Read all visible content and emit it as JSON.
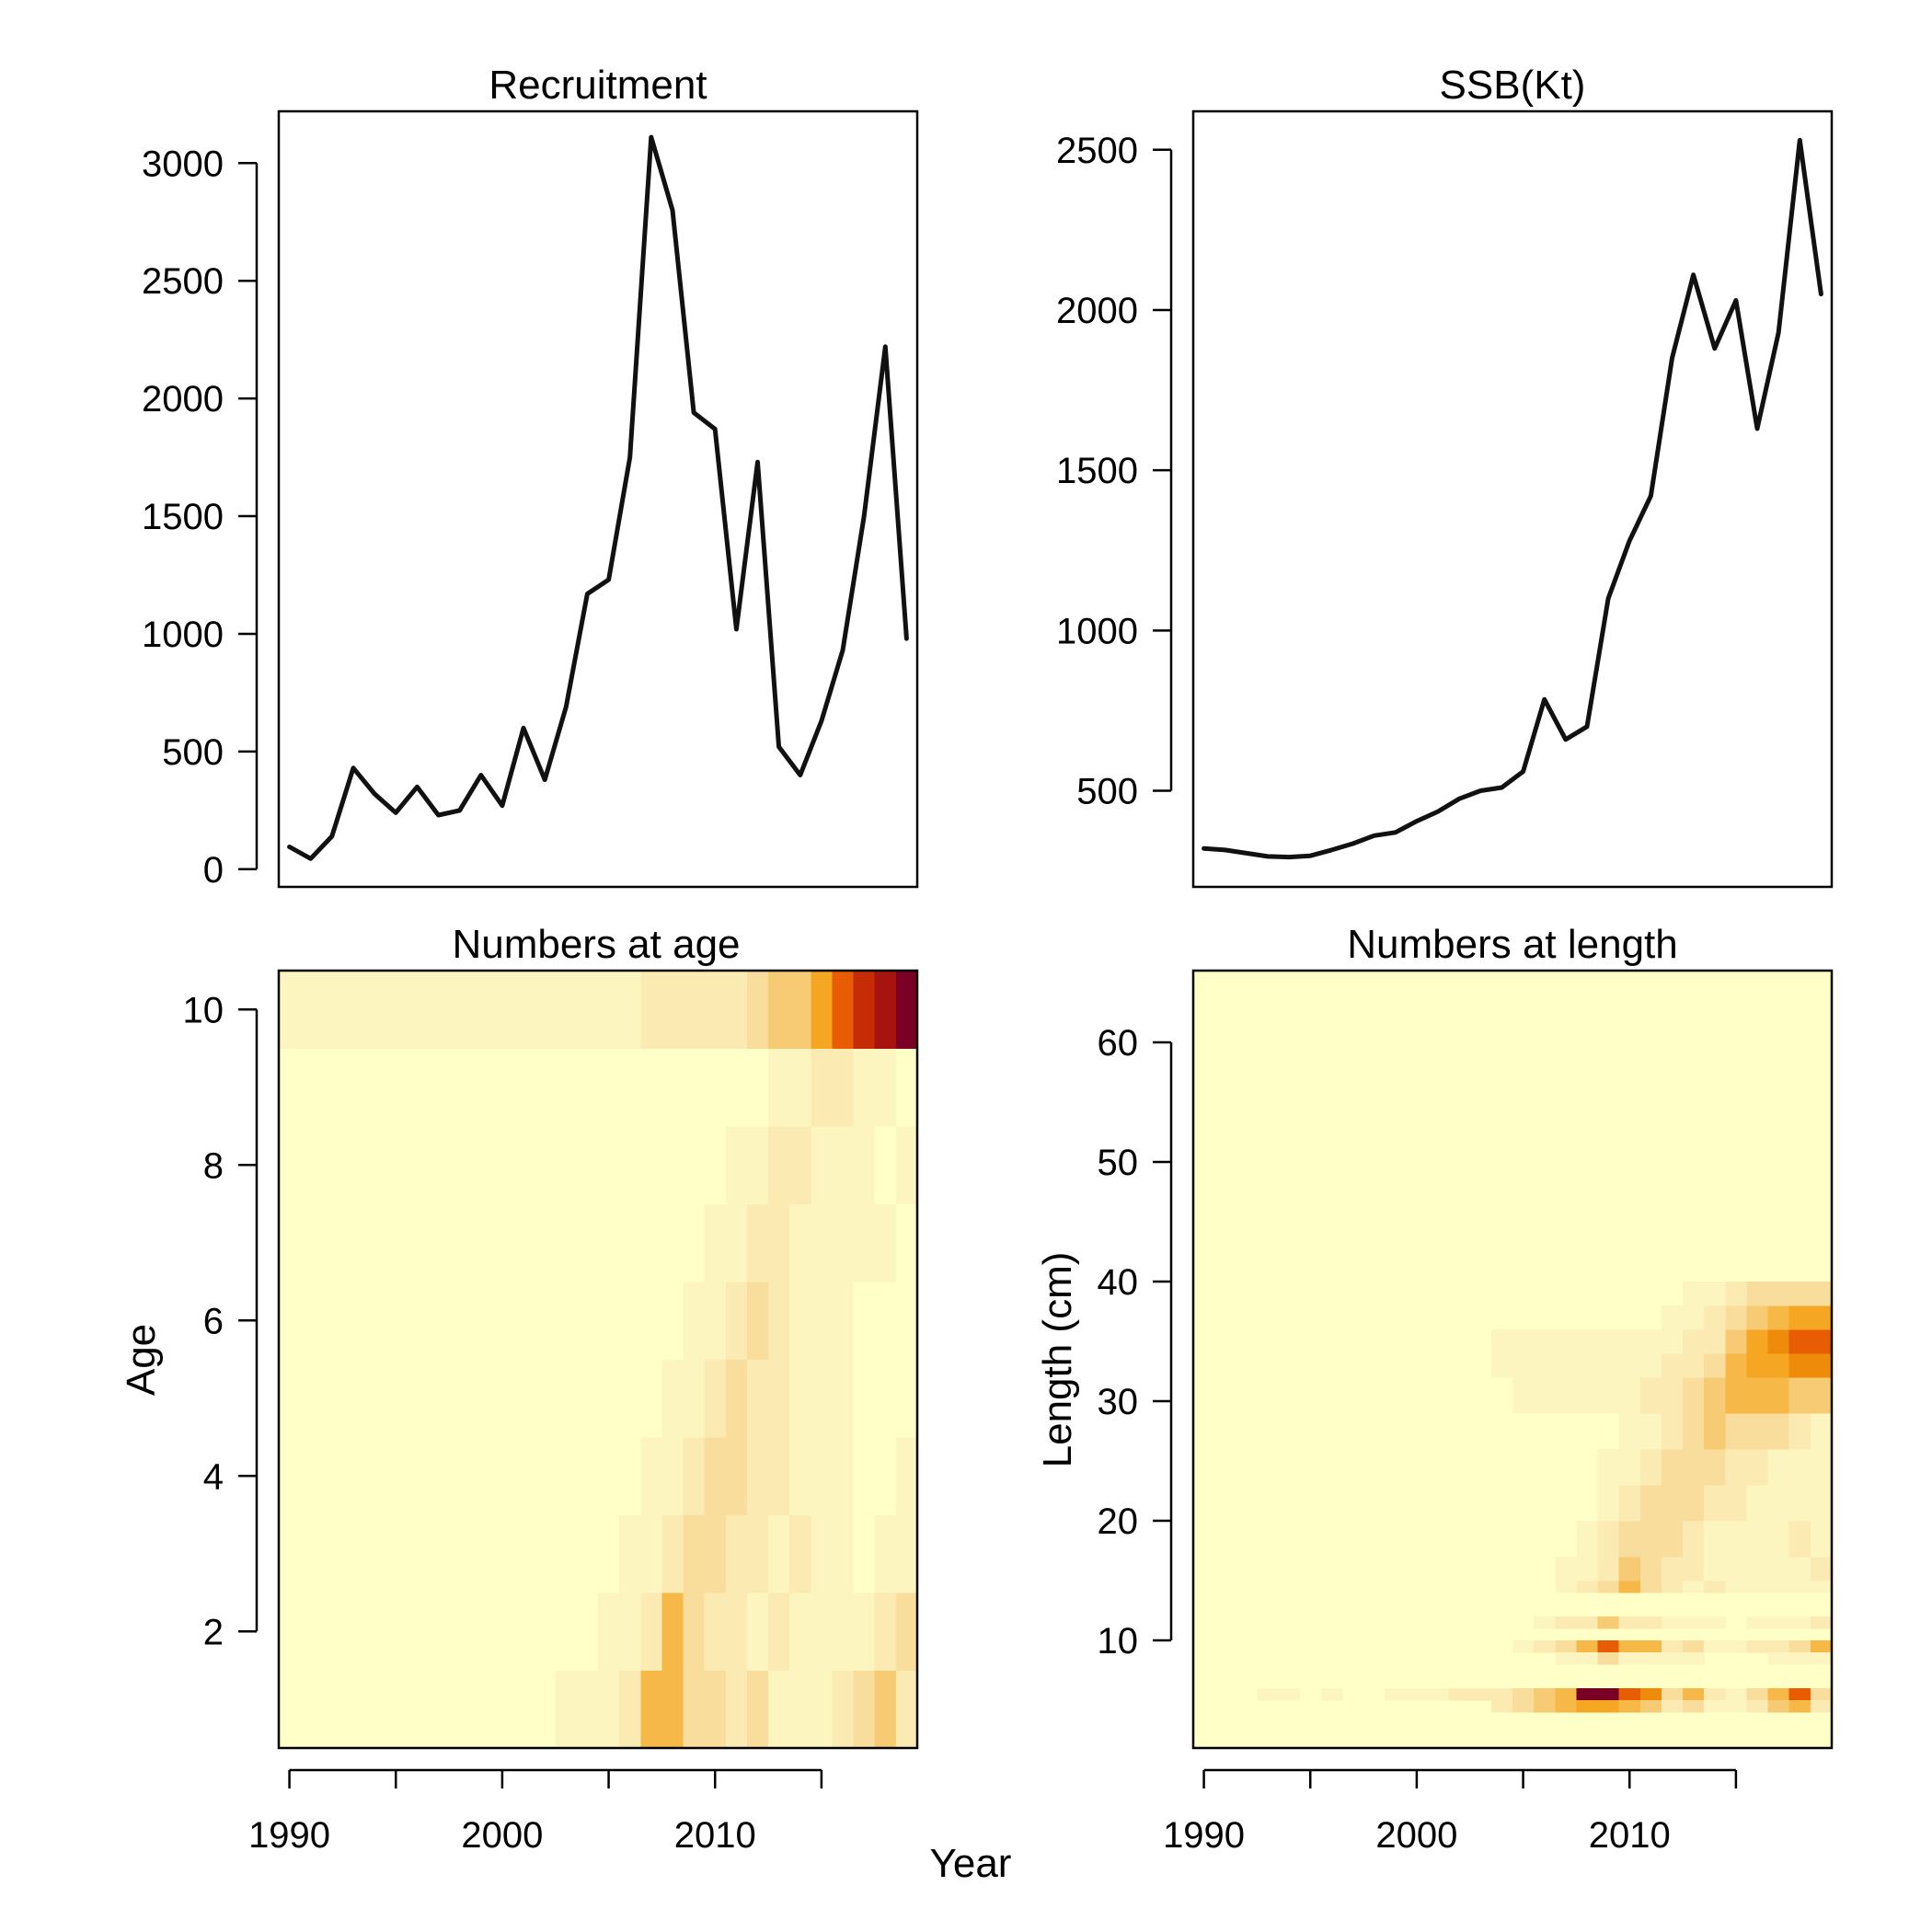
{
  "chart_data": [
    {
      "id": "recruitment",
      "type": "line",
      "title": "Recruitment",
      "xlabel": "",
      "ylabel": "",
      "x": [
        1990,
        1991,
        1992,
        1993,
        1994,
        1995,
        1996,
        1997,
        1998,
        1999,
        2000,
        2001,
        2002,
        2003,
        2004,
        2005,
        2006,
        2007,
        2008,
        2009,
        2010,
        2011,
        2012,
        2013,
        2014,
        2015,
        2016,
        2017,
        2018,
        2019
      ],
      "values": [
        95,
        45,
        140,
        430,
        320,
        240,
        350,
        230,
        250,
        400,
        270,
        600,
        380,
        690,
        1170,
        1230,
        1750,
        3110,
        2800,
        1940,
        1870,
        1020,
        1730,
        520,
        400,
        630,
        930,
        1500,
        2220,
        980
      ],
      "xlim": [
        1989.5,
        2019.5
      ],
      "ylim": [
        -75,
        3220
      ],
      "xticks": [
        1990,
        1995,
        2000,
        2005,
        2010,
        2015
      ],
      "xtick_labels": [
        "1990",
        "",
        "2000",
        "",
        "2010",
        ""
      ],
      "yticks": [
        0,
        500,
        1000,
        1500,
        2000,
        2500,
        3000
      ],
      "ytick_labels": [
        "0",
        "500",
        "1000",
        "1500",
        "2000",
        "2500",
        "3000"
      ],
      "show_x_ticks": false,
      "grid": false
    },
    {
      "id": "ssb",
      "type": "line",
      "title": "SSB(Kt)",
      "xlabel": "",
      "ylabel": "",
      "x": [
        1990,
        1991,
        1992,
        1993,
        1994,
        1995,
        1996,
        1997,
        1998,
        1999,
        2000,
        2001,
        2002,
        2003,
        2004,
        2005,
        2006,
        2007,
        2008,
        2009,
        2010,
        2011,
        2012,
        2013,
        2014,
        2015,
        2016,
        2017,
        2018,
        2019
      ],
      "values": [
        320,
        315,
        305,
        295,
        293,
        297,
        315,
        335,
        360,
        370,
        405,
        435,
        475,
        500,
        510,
        560,
        785,
        660,
        700,
        1100,
        1280,
        1420,
        1850,
        2110,
        1880,
        2030,
        1630,
        1930,
        2530,
        2050
      ],
      "xlim": [
        1989.5,
        2019.5
      ],
      "ylim": [
        200,
        2620
      ],
      "xticks": [
        1990,
        1995,
        2000,
        2005,
        2010,
        2015
      ],
      "xtick_labels": [
        "1990",
        "",
        "2000",
        "",
        "2010",
        ""
      ],
      "yticks": [
        500,
        1000,
        1500,
        2000,
        2500
      ],
      "ytick_labels": [
        "500",
        "1000",
        "1500",
        "2000",
        "2500"
      ],
      "show_x_ticks": false,
      "grid": false
    },
    {
      "id": "numbers-at-age",
      "type": "heatmap",
      "title": "Numbers at age",
      "xlabel": "",
      "ylabel": "Age",
      "x": [
        1990,
        1991,
        1992,
        1993,
        1994,
        1995,
        1996,
        1997,
        1998,
        1999,
        2000,
        2001,
        2002,
        2003,
        2004,
        2005,
        2006,
        2007,
        2008,
        2009,
        2010,
        2011,
        2012,
        2013,
        2014,
        2015,
        2016,
        2017,
        2018,
        2019
      ],
      "y": [
        1,
        2,
        3,
        4,
        5,
        6,
        7,
        8,
        9,
        10
      ],
      "xlim": [
        1989.5,
        2019.5
      ],
      "ylim": [
        0.5,
        10.5
      ],
      "xticks": [
        1990,
        1995,
        2000,
        2005,
        2010,
        2015
      ],
      "xtick_labels": [
        "1990",
        "",
        "2000",
        "",
        "2010",
        ""
      ],
      "yticks": [
        2,
        4,
        6,
        8,
        10
      ],
      "ytick_labels": [
        "2",
        "4",
        "6",
        "8",
        "10"
      ],
      "color_scale": [
        "#FFFFC8",
        "#FDF5BF",
        "#FBEAB2",
        "#F9DD9C",
        "#F7CA74",
        "#F6B847",
        "#F5A623",
        "#EE8B0B",
        "#E85D04",
        "#C62D06",
        "#A71410",
        "#7A0026"
      ],
      "z": [
        [
          0,
          0,
          0,
          0,
          0,
          0,
          0,
          0,
          0,
          0,
          0,
          0,
          0,
          1,
          1,
          1,
          2,
          5,
          5,
          3,
          3,
          2,
          3,
          1,
          1,
          1,
          2,
          3,
          4,
          2
        ],
        [
          0,
          0,
          0,
          0,
          0,
          0,
          0,
          0,
          0,
          0,
          0,
          0,
          0,
          0,
          0,
          1,
          1,
          2,
          5,
          3,
          2,
          2,
          1,
          2,
          1,
          1,
          1,
          1,
          2,
          3
        ],
        [
          0,
          0,
          0,
          0,
          0,
          0,
          0,
          0,
          0,
          0,
          0,
          0,
          0,
          0,
          0,
          0,
          1,
          1,
          2,
          3,
          3,
          2,
          2,
          1,
          2,
          1,
          1,
          0,
          1,
          1
        ],
        [
          0,
          0,
          0,
          0,
          0,
          0,
          0,
          0,
          0,
          0,
          0,
          0,
          0,
          0,
          0,
          0,
          0,
          1,
          1,
          2,
          3,
          3,
          2,
          2,
          1,
          1,
          1,
          0,
          0,
          1
        ],
        [
          0,
          0,
          0,
          0,
          0,
          0,
          0,
          0,
          0,
          0,
          0,
          0,
          0,
          0,
          0,
          0,
          0,
          0,
          1,
          1,
          2,
          3,
          2,
          2,
          1,
          1,
          1,
          0,
          0,
          0
        ],
        [
          0,
          0,
          0,
          0,
          0,
          0,
          0,
          0,
          0,
          0,
          0,
          0,
          0,
          0,
          0,
          0,
          0,
          0,
          0,
          1,
          1,
          2,
          3,
          2,
          1,
          1,
          1,
          0,
          0,
          0
        ],
        [
          0,
          0,
          0,
          0,
          0,
          0,
          0,
          0,
          0,
          0,
          0,
          0,
          0,
          0,
          0,
          0,
          0,
          0,
          0,
          0,
          1,
          1,
          2,
          2,
          1,
          1,
          1,
          1,
          1,
          0
        ],
        [
          0,
          0,
          0,
          0,
          0,
          0,
          0,
          0,
          0,
          0,
          0,
          0,
          0,
          0,
          0,
          0,
          0,
          0,
          0,
          0,
          0,
          1,
          1,
          2,
          2,
          1,
          1,
          1,
          0,
          1
        ],
        [
          0,
          0,
          0,
          0,
          0,
          0,
          0,
          0,
          0,
          0,
          0,
          0,
          0,
          0,
          0,
          0,
          0,
          0,
          0,
          0,
          0,
          0,
          0,
          1,
          1,
          2,
          2,
          1,
          1,
          0
        ],
        [
          1,
          1,
          1,
          1,
          1,
          1,
          1,
          1,
          1,
          1,
          1,
          1,
          1,
          1,
          1,
          1,
          1,
          2,
          2,
          2,
          2,
          2,
          3,
          4,
          4,
          6,
          8,
          9,
          10,
          11
        ]
      ],
      "grid": false
    },
    {
      "id": "numbers-at-length",
      "type": "heatmap",
      "title": "Numbers at length",
      "xlabel": "",
      "ylabel": "Length (cm)",
      "x": [
        1990,
        1991,
        1992,
        1993,
        1994,
        1995,
        1996,
        1997,
        1998,
        1999,
        2000,
        2001,
        2002,
        2003,
        2004,
        2005,
        2006,
        2007,
        2008,
        2009,
        2010,
        2011,
        2012,
        2013,
        2014,
        2015,
        2016,
        2017,
        2018,
        2019
      ],
      "y_start": 0.5,
      "y_step": 1.0,
      "xlim": [
        1989.5,
        2019.5
      ],
      "ylim": [
        1,
        66
      ],
      "xticks": [
        1990,
        1995,
        2000,
        2005,
        2010,
        2015
      ],
      "xtick_labels": [
        "1990",
        "",
        "2000",
        "",
        "2010",
        ""
      ],
      "yticks": [
        10,
        20,
        30,
        40,
        50,
        60
      ],
      "ytick_labels": [
        "10",
        "20",
        "30",
        "40",
        "50",
        "60"
      ],
      "color_scale": [
        "#FFFFC8",
        "#FDF5BF",
        "#FBEAB2",
        "#F9DD9C",
        "#F7CA74",
        "#F6B847",
        "#F5A623",
        "#EE8B0B",
        "#E85D04",
        "#C62D06",
        "#A71410",
        "#7A0026"
      ],
      "cells": [
        {
          "r": [
            5,
            6
          ],
          "v": [
            0,
            0,
            0,
            1,
            1,
            0,
            1,
            0,
            0,
            1,
            1,
            1,
            2,
            2,
            2,
            3,
            4,
            5,
            11,
            11,
            8,
            7,
            3,
            5,
            2,
            1,
            3,
            5,
            8,
            3
          ]
        },
        {
          "r": [
            4,
            5
          ],
          "v": [
            0,
            0,
            0,
            0,
            0,
            0,
            0,
            0,
            0,
            0,
            0,
            0,
            0,
            0,
            2,
            3,
            4,
            5,
            6,
            6,
            5,
            4,
            2,
            3,
            1,
            1,
            2,
            4,
            5,
            2
          ]
        },
        {
          "r": [
            9,
            10
          ],
          "v": [
            0,
            0,
            0,
            0,
            0,
            0,
            0,
            0,
            0,
            0,
            0,
            0,
            0,
            0,
            0,
            1,
            2,
            3,
            5,
            8,
            5,
            5,
            2,
            3,
            1,
            1,
            2,
            2,
            3,
            5
          ]
        },
        {
          "r": [
            11,
            12
          ],
          "v": [
            0,
            0,
            0,
            0,
            0,
            0,
            0,
            0,
            0,
            0,
            0,
            0,
            0,
            0,
            0,
            0,
            1,
            2,
            2,
            4,
            2,
            2,
            1,
            1,
            1,
            0,
            1,
            1,
            1,
            2
          ]
        },
        {
          "r": [
            8,
            9
          ],
          "v": [
            0,
            0,
            0,
            0,
            0,
            0,
            0,
            0,
            0,
            0,
            0,
            0,
            0,
            0,
            0,
            0,
            0,
            1,
            1,
            3,
            1,
            1,
            1,
            1,
            0,
            0,
            0,
            1,
            1,
            1
          ]
        },
        {
          "r": [
            14,
            15
          ],
          "v": [
            0,
            0,
            0,
            0,
            0,
            0,
            0,
            0,
            0,
            0,
            0,
            0,
            0,
            0,
            0,
            0,
            0,
            1,
            2,
            3,
            5,
            3,
            2,
            1,
            2,
            1,
            1,
            1,
            1,
            1
          ]
        },
        {
          "r": [
            15,
            17
          ],
          "v": [
            0,
            0,
            0,
            0,
            0,
            0,
            0,
            0,
            0,
            0,
            0,
            0,
            0,
            0,
            0,
            0,
            0,
            1,
            1,
            2,
            4,
            3,
            2,
            2,
            1,
            1,
            1,
            1,
            1,
            2
          ]
        },
        {
          "r": [
            17,
            20
          ],
          "v": [
            0,
            0,
            0,
            0,
            0,
            0,
            0,
            0,
            0,
            0,
            0,
            0,
            0,
            0,
            0,
            0,
            0,
            0,
            1,
            2,
            3,
            3,
            3,
            2,
            1,
            1,
            1,
            1,
            2,
            1
          ]
        },
        {
          "r": [
            20,
            23
          ],
          "v": [
            0,
            0,
            0,
            0,
            0,
            0,
            0,
            0,
            0,
            0,
            0,
            0,
            0,
            0,
            0,
            0,
            0,
            0,
            0,
            1,
            2,
            3,
            3,
            3,
            2,
            2,
            1,
            1,
            1,
            1
          ]
        },
        {
          "r": [
            23,
            26
          ],
          "v": [
            0,
            0,
            0,
            0,
            0,
            0,
            0,
            0,
            0,
            0,
            0,
            0,
            0,
            0,
            0,
            0,
            0,
            0,
            0,
            1,
            1,
            2,
            3,
            3,
            3,
            2,
            2,
            1,
            1,
            1
          ]
        },
        {
          "r": [
            26,
            29
          ],
          "v": [
            0,
            0,
            0,
            0,
            0,
            0,
            0,
            0,
            0,
            0,
            0,
            0,
            0,
            0,
            0,
            0,
            0,
            0,
            0,
            0,
            1,
            1,
            2,
            3,
            4,
            3,
            3,
            3,
            2,
            1
          ]
        },
        {
          "r": [
            29,
            32
          ],
          "v": [
            0,
            0,
            0,
            0,
            0,
            0,
            0,
            0,
            0,
            0,
            0,
            0,
            0,
            0,
            0,
            1,
            1,
            1,
            1,
            1,
            1,
            2,
            2,
            3,
            4,
            5,
            5,
            5,
            4,
            4
          ]
        },
        {
          "r": [
            32,
            34
          ],
          "v": [
            0,
            0,
            0,
            0,
            0,
            0,
            0,
            0,
            0,
            0,
            0,
            0,
            0,
            0,
            1,
            1,
            1,
            1,
            1,
            1,
            1,
            1,
            2,
            2,
            3,
            5,
            6,
            6,
            7,
            7
          ]
        },
        {
          "r": [
            34,
            36
          ],
          "v": [
            0,
            0,
            0,
            0,
            0,
            0,
            0,
            0,
            0,
            0,
            0,
            0,
            0,
            0,
            1,
            1,
            1,
            1,
            1,
            1,
            1,
            1,
            1,
            2,
            2,
            4,
            6,
            7,
            8,
            8
          ]
        },
        {
          "r": [
            36,
            38
          ],
          "v": [
            0,
            0,
            0,
            0,
            0,
            0,
            0,
            0,
            0,
            0,
            0,
            0,
            0,
            0,
            0,
            0,
            0,
            0,
            0,
            0,
            0,
            0,
            1,
            1,
            2,
            3,
            4,
            5,
            6,
            6
          ]
        },
        {
          "r": [
            38,
            40
          ],
          "v": [
            0,
            0,
            0,
            0,
            0,
            0,
            0,
            0,
            0,
            0,
            0,
            0,
            0,
            0,
            0,
            0,
            0,
            0,
            0,
            0,
            0,
            0,
            0,
            1,
            1,
            2,
            3,
            3,
            3,
            3
          ]
        }
      ],
      "grid": false
    }
  ],
  "shared_xlabel": "Year"
}
